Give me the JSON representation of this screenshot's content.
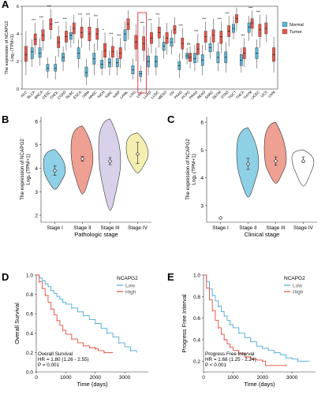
{
  "colors": {
    "normal": "#5ab4d6",
    "tumor": "#e8564a",
    "low": "#4fb7d9",
    "high": "#e8473c",
    "violin1": "#8ed0e6",
    "violin2": "#eea093",
    "violin3": "#d9d0ea",
    "violin4": "#f4efb0",
    "km_low": "#4aa9d8",
    "km_high": "#e74c3c"
  },
  "panels": {
    "A": "A",
    "B": "B",
    "C": "C",
    "D": "D",
    "E": "E"
  },
  "chart_data": [
    {
      "type": "box",
      "panel": "A",
      "ylabel_line1": "The expression of NCAPG2",
      "ylabel_line2": "Log₂ (TPM+1)",
      "ylim": [
        0,
        6
      ],
      "yticks": [
        0,
        2,
        4,
        6
      ],
      "legend": [
        {
          "name": "Normal",
          "color": "#5ab4d6"
        },
        {
          "name": "Tumor",
          "color": "#e8564a"
        }
      ],
      "highlight_category": "LIHC",
      "categories": [
        "ACC",
        "BLCA",
        "BRCA",
        "CESC",
        "CHOL",
        "COAD",
        "DLBC",
        "ESCA",
        "GBM",
        "HNSC",
        "KICH",
        "KIRC",
        "KIRP",
        "LAML",
        "LGG",
        "LIHC",
        "LUAD",
        "LUSC",
        "MESO",
        "OV",
        "PAAD",
        "PCPG",
        "PRAD",
        "READ",
        "SARC",
        "SKCM",
        "STAD",
        "TGCT",
        "THCA",
        "THYM",
        "UCEC",
        "UCS",
        "UVM"
      ],
      "significance": [
        "",
        "***",
        "***",
        "***",
        "***",
        "***",
        "",
        "***",
        "***",
        "***",
        "*",
        "***",
        "***",
        "",
        "",
        "***",
        "***",
        "***",
        "",
        "",
        "***",
        "ns",
        "***",
        "***",
        "",
        "***",
        "***",
        "",
        "***",
        "***",
        "***",
        "",
        ""
      ],
      "normal": [
        null,
        [
          1.6,
          2.2,
          2.7,
          3.0,
          3.6
        ],
        [
          1.7,
          2.3,
          2.6,
          3.0,
          3.7
        ],
        [
          0.8,
          1.3,
          1.5,
          1.8,
          2.3
        ],
        [
          0.7,
          1.3,
          1.5,
          1.8,
          2.4
        ],
        [
          1.3,
          2.0,
          2.3,
          2.6,
          3.1
        ],
        [
          3.0,
          3.6,
          3.9,
          4.1,
          4.6
        ],
        [
          1.5,
          2.2,
          2.6,
          3.0,
          3.6
        ],
        [
          0.3,
          0.9,
          1.2,
          1.6,
          2.2
        ],
        [
          1.0,
          1.8,
          2.2,
          2.6,
          3.3
        ],
        [
          1.0,
          1.5,
          1.8,
          2.1,
          2.8
        ],
        [
          1.0,
          1.6,
          1.9,
          2.2,
          2.8
        ],
        [
          1.0,
          1.6,
          1.9,
          2.2,
          2.8
        ],
        [
          2.8,
          3.5,
          4.0,
          4.3,
          4.9
        ],
        [
          0.7,
          1.1,
          1.4,
          1.7,
          2.2
        ],
        [
          0.5,
          0.9,
          1.1,
          1.3,
          1.7
        ],
        [
          1.0,
          1.6,
          2.0,
          2.4,
          3.0
        ],
        [
          1.0,
          1.6,
          2.0,
          2.4,
          3.0
        ],
        [
          2.2,
          2.8,
          3.1,
          3.4,
          3.9
        ],
        [
          2.5,
          3.1,
          3.4,
          3.7,
          4.3
        ],
        [
          0.8,
          1.4,
          1.7,
          2.0,
          2.6
        ],
        [
          1.8,
          2.2,
          2.4,
          2.6,
          3.0
        ],
        [
          1.3,
          1.9,
          2.2,
          2.6,
          3.2
        ],
        [
          1.0,
          1.7,
          2.1,
          2.5,
          3.2
        ],
        [
          2.2,
          2.7,
          3.0,
          3.3,
          3.8
        ],
        [
          1.3,
          1.9,
          2.3,
          2.7,
          3.4
        ],
        [
          1.2,
          1.9,
          2.3,
          2.7,
          3.4
        ],
        [
          3.6,
          4.1,
          4.4,
          4.7,
          5.3
        ],
        [
          1.2,
          1.7,
          2.1,
          2.5,
          3.0
        ],
        [
          3.5,
          4.1,
          4.5,
          4.8,
          5.3
        ],
        [
          1.5,
          2.2,
          2.6,
          3.0,
          3.6
        ],
        [
          null
        ],
        [
          null
        ]
      ],
      "tumor": [
        [
          1.0,
          2.0,
          2.5,
          3.1,
          4.2
        ],
        [
          2.5,
          3.2,
          3.6,
          4.0,
          4.8
        ],
        [
          2.8,
          3.5,
          3.9,
          4.3,
          5.0
        ],
        [
          3.6,
          4.3,
          4.7,
          5.1,
          5.8
        ],
        [
          2.3,
          3.0,
          3.4,
          3.8,
          4.6
        ],
        [
          2.8,
          3.4,
          3.8,
          4.2,
          4.9
        ],
        [
          3.3,
          4.0,
          4.4,
          4.8,
          5.4
        ],
        [
          3.0,
          3.7,
          4.1,
          4.5,
          5.2
        ],
        [
          2.8,
          3.5,
          4.0,
          4.5,
          5.2
        ],
        [
          2.8,
          3.6,
          4.0,
          4.4,
          5.1
        ],
        [
          1.5,
          2.3,
          2.8,
          3.3,
          4.1
        ],
        [
          1.6,
          2.3,
          2.7,
          3.1,
          3.8
        ],
        [
          1.5,
          2.2,
          2.6,
          3.0,
          3.7
        ],
        [
          3.6,
          4.3,
          4.7,
          5.1,
          5.7
        ],
        [
          2.0,
          2.9,
          3.4,
          3.9,
          4.7
        ],
        [
          2.0,
          2.8,
          3.3,
          3.8,
          4.6
        ],
        [
          2.6,
          3.3,
          3.7,
          4.1,
          4.8
        ],
        [
          3.0,
          3.7,
          4.1,
          4.5,
          5.2
        ],
        [
          2.5,
          3.3,
          3.7,
          4.1,
          4.8
        ],
        [
          3.3,
          4.0,
          4.3,
          4.6,
          5.2
        ],
        [
          2.2,
          2.9,
          3.3,
          3.7,
          4.4
        ],
        [
          1.5,
          2.0,
          2.3,
          2.6,
          3.1
        ],
        [
          1.9,
          2.5,
          2.9,
          3.3,
          4.0
        ],
        [
          2.8,
          3.4,
          3.8,
          4.2,
          4.9
        ],
        [
          2.7,
          3.4,
          3.9,
          4.3,
          5.1
        ],
        [
          2.6,
          3.3,
          3.8,
          4.2,
          4.9
        ],
        [
          3.1,
          3.8,
          4.2,
          4.6,
          5.3
        ],
        [
          4.2,
          4.8,
          5.1,
          5.4,
          5.9
        ],
        [
          1.6,
          2.2,
          2.6,
          3.0,
          3.7
        ],
        [
          3.8,
          4.4,
          4.8,
          5.1,
          5.7
        ],
        [
          3.0,
          3.8,
          4.3,
          4.7,
          5.4
        ],
        [
          3.4,
          4.0,
          4.4,
          4.8,
          5.4
        ],
        [
          1.2,
          2.0,
          2.5,
          3.0,
          3.8
        ]
      ]
    },
    {
      "type": "violin",
      "panel": "B",
      "ylabel_line1": "The expression of NCAPG2",
      "ylabel_line2": "Log₂ (TPM+1)",
      "xlabel": "Pathologic stage",
      "ylim": [
        1.7,
        6.2
      ],
      "yticks": [
        2,
        3,
        4,
        5,
        6
      ],
      "categories": [
        "Stage I",
        "Stage II",
        "Stage III",
        "Stage IV"
      ],
      "ranges": [
        [
          3.1,
          4.8
        ],
        [
          2.9,
          5.8
        ],
        [
          2.2,
          6.1
        ],
        [
          3.8,
          5.5
        ]
      ],
      "medians": [
        3.9,
        4.4,
        4.3,
        4.6
      ],
      "ci": [
        [
          3.7,
          4.1
        ],
        [
          4.3,
          4.5
        ],
        [
          4.15,
          4.45
        ],
        [
          4.2,
          5.1
        ]
      ]
    },
    {
      "type": "violin",
      "panel": "C",
      "ylabel_line1": "The expression of NCAPG2",
      "ylabel_line2": "Log₂ (TPM+1)",
      "xlabel": "Clinical stage",
      "ylim": [
        2.4,
        6.2
      ],
      "yticks": [
        3,
        4,
        5,
        6
      ],
      "categories": [
        "Stage I",
        "Stage II",
        "Stage III",
        "Stage IV"
      ],
      "ranges": [
        null,
        [
          3.3,
          5.8
        ],
        [
          3.8,
          6.0
        ],
        [
          3.7,
          5.0
        ]
      ],
      "medians": [
        2.55,
        4.5,
        4.6,
        4.6
      ],
      "ci": [
        [
          2.55,
          2.55
        ],
        [
          4.3,
          4.7
        ],
        [
          4.45,
          4.75
        ],
        [
          4.55,
          4.75
        ]
      ]
    },
    {
      "type": "km",
      "panel": "D",
      "legend_title": "NCAPG2",
      "series": [
        {
          "name": "Low",
          "color": "#4aa9d8"
        },
        {
          "name": "High",
          "color": "#e74c3c"
        }
      ],
      "ylabel": "Overall Survival",
      "xlabel": "Time (days)",
      "ylim": [
        0,
        1.0
      ],
      "yticks": [
        0.0,
        0.2,
        0.4,
        0.6,
        0.8,
        1.0
      ],
      "xlim": [
        0,
        3800
      ],
      "xticks": [
        0,
        1000,
        2000,
        3000
      ],
      "low": [
        [
          0,
          1.0
        ],
        [
          100,
          0.97
        ],
        [
          200,
          0.94
        ],
        [
          300,
          0.91
        ],
        [
          400,
          0.88
        ],
        [
          500,
          0.84
        ],
        [
          600,
          0.81
        ],
        [
          700,
          0.78
        ],
        [
          800,
          0.75
        ],
        [
          900,
          0.72
        ],
        [
          1000,
          0.7
        ],
        [
          1200,
          0.66
        ],
        [
          1400,
          0.62
        ],
        [
          1600,
          0.58
        ],
        [
          1800,
          0.54
        ],
        [
          2000,
          0.5
        ],
        [
          2200,
          0.45
        ],
        [
          2400,
          0.4
        ],
        [
          2600,
          0.36
        ],
        [
          2800,
          0.3
        ],
        [
          3000,
          0.26
        ],
        [
          3200,
          0.22
        ],
        [
          3400,
          0.2
        ]
      ],
      "high": [
        [
          0,
          1.0
        ],
        [
          100,
          0.93
        ],
        [
          200,
          0.86
        ],
        [
          300,
          0.79
        ],
        [
          400,
          0.72
        ],
        [
          500,
          0.65
        ],
        [
          600,
          0.59
        ],
        [
          700,
          0.53
        ],
        [
          800,
          0.48
        ],
        [
          900,
          0.43
        ],
        [
          1000,
          0.39
        ],
        [
          1200,
          0.34
        ],
        [
          1400,
          0.3
        ],
        [
          1600,
          0.27
        ],
        [
          1800,
          0.25
        ],
        [
          2000,
          0.24
        ],
        [
          2100,
          0.22
        ],
        [
          2300,
          0.2
        ],
        [
          2600,
          0.2
        ]
      ],
      "annotation": [
        "Overall Survival",
        "HR = 1.80 (1.26 - 2.55)",
        "P = 0.001"
      ]
    },
    {
      "type": "km",
      "panel": "E",
      "legend_title": "NCAPG2",
      "series": [
        {
          "name": "Low",
          "color": "#4aa9d8"
        },
        {
          "name": "High",
          "color": "#e74c3c"
        }
      ],
      "ylabel": "Progress Free Interval",
      "xlabel": "Time (days)",
      "ylim": [
        0.1,
        1.0
      ],
      "yticks": [
        0.2,
        0.4,
        0.6,
        0.8,
        1.0
      ],
      "xlim": [
        0,
        3800
      ],
      "xticks": [
        0,
        1000,
        2000,
        3000
      ],
      "low": [
        [
          0,
          1.0
        ],
        [
          100,
          0.94
        ],
        [
          200,
          0.87
        ],
        [
          300,
          0.81
        ],
        [
          400,
          0.76
        ],
        [
          500,
          0.71
        ],
        [
          600,
          0.66
        ],
        [
          700,
          0.62
        ],
        [
          800,
          0.58
        ],
        [
          900,
          0.54
        ],
        [
          1000,
          0.51
        ],
        [
          1200,
          0.46
        ],
        [
          1400,
          0.42
        ],
        [
          1600,
          0.38
        ],
        [
          1800,
          0.34
        ],
        [
          2000,
          0.32
        ],
        [
          2200,
          0.3
        ],
        [
          2400,
          0.28
        ],
        [
          2600,
          0.26
        ],
        [
          2800,
          0.23
        ],
        [
          3000,
          0.22
        ],
        [
          3200,
          0.2
        ],
        [
          3600,
          0.2
        ]
      ],
      "high": [
        [
          0,
          1.0
        ],
        [
          100,
          0.88
        ],
        [
          200,
          0.77
        ],
        [
          300,
          0.67
        ],
        [
          400,
          0.58
        ],
        [
          500,
          0.51
        ],
        [
          600,
          0.45
        ],
        [
          700,
          0.4
        ],
        [
          800,
          0.36
        ],
        [
          900,
          0.33
        ],
        [
          1000,
          0.3
        ],
        [
          1200,
          0.27
        ],
        [
          1400,
          0.24
        ],
        [
          1600,
          0.22
        ],
        [
          1800,
          0.21
        ],
        [
          2000,
          0.2
        ],
        [
          2100,
          0.16
        ],
        [
          2800,
          0.16
        ]
      ],
      "annotation": [
        "Progress Free Interval",
        "HR = 1.68 (1.25 - 2.24)",
        "P < 0.001"
      ]
    }
  ]
}
